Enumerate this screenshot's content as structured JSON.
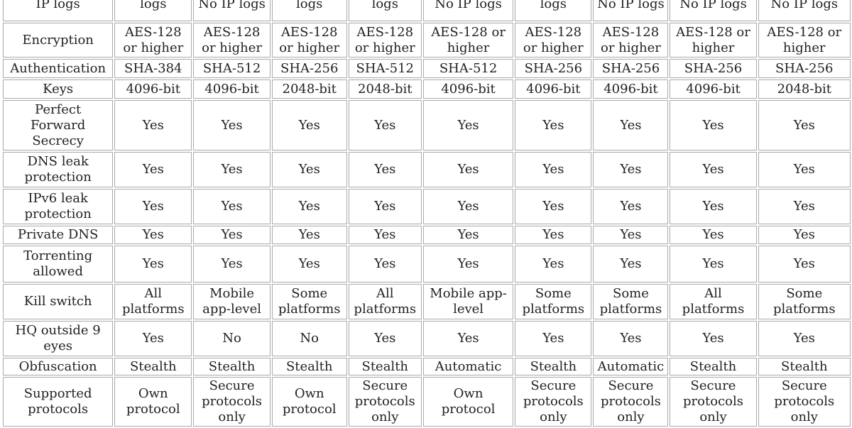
{
  "table": {
    "rows": [
      {
        "label": "IP logs",
        "cells": [
          "logs",
          "No IP logs",
          "logs",
          "logs",
          "No IP logs",
          "logs",
          "No IP logs",
          "No IP logs",
          "No IP logs"
        ]
      },
      {
        "label": "Encryption",
        "cells": [
          "AES-128 or higher",
          "AES-128 or higher",
          "AES-128 or higher",
          "AES-128 or higher",
          "AES-128 or higher",
          "AES-128 or higher",
          "AES-128 or higher",
          "AES-128 or higher",
          "AES-128 or higher"
        ]
      },
      {
        "label": "Authentication",
        "cells": [
          "SHA-384",
          "SHA-512",
          "SHA-256",
          "SHA-512",
          "SHA-512",
          "SHA-256",
          "SHA-256",
          "SHA-256",
          "SHA-256"
        ]
      },
      {
        "label": "Keys",
        "cells": [
          "4096-bit",
          "4096-bit",
          "2048-bit",
          "2048-bit",
          "4096-bit",
          "4096-bit",
          "4096-bit",
          "4096-bit",
          "2048-bit"
        ]
      },
      {
        "label": "Perfect Forward Secrecy",
        "cells": [
          "Yes",
          "Yes",
          "Yes",
          "Yes",
          "Yes",
          "Yes",
          "Yes",
          "Yes",
          "Yes"
        ]
      },
      {
        "label": "DNS leak protection",
        "cells": [
          "Yes",
          "Yes",
          "Yes",
          "Yes",
          "Yes",
          "Yes",
          "Yes",
          "Yes",
          "Yes"
        ]
      },
      {
        "label": "IPv6 leak protection",
        "cells": [
          "Yes",
          "Yes",
          "Yes",
          "Yes",
          "Yes",
          "Yes",
          "Yes",
          "Yes",
          "Yes"
        ]
      },
      {
        "label": "Private DNS",
        "cells": [
          "Yes",
          "Yes",
          "Yes",
          "Yes",
          "Yes",
          "Yes",
          "Yes",
          "Yes",
          "Yes"
        ]
      },
      {
        "label": "Torrenting allowed",
        "cells": [
          "Yes",
          "Yes",
          "Yes",
          "Yes",
          "Yes",
          "Yes",
          "Yes",
          "Yes",
          "Yes"
        ]
      },
      {
        "label": "Kill switch",
        "cells": [
          "All platforms",
          "Mobile app-level",
          "Some platforms",
          "All platforms",
          "Mobile app-level",
          "Some platforms",
          "Some platforms",
          "All platforms",
          "Some platforms"
        ]
      },
      {
        "label": "HQ outside 9 eyes",
        "cells": [
          "Yes",
          "No",
          "No",
          "Yes",
          "Yes",
          "Yes",
          "Yes",
          "Yes",
          "Yes"
        ]
      },
      {
        "label": "Obfuscation",
        "cells": [
          "Stealth",
          "Stealth",
          "Stealth",
          "Stealth",
          "Automatic",
          "Stealth",
          "Automatic",
          "Stealth",
          "Stealth"
        ]
      },
      {
        "label": "Supported protocols",
        "cells": [
          "Own protocol",
          "Secure protocols only",
          "Own protocol",
          "Secure protocols only",
          "Own protocol",
          "Secure protocols only",
          "Secure protocols only",
          "Secure protocols only",
          "Secure protocols only"
        ]
      }
    ]
  }
}
